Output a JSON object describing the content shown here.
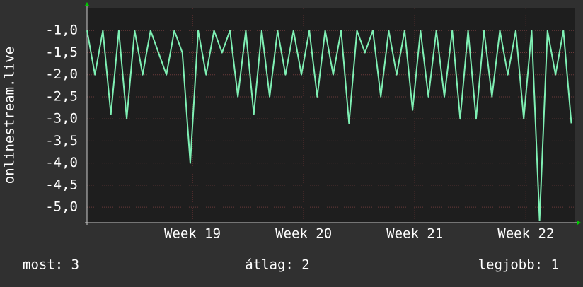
{
  "chart_data": {
    "type": "line",
    "y_label": "onlinestream.live",
    "x": [
      0,
      0.5,
      1,
      1.5,
      2,
      2.5,
      3,
      3.5,
      4,
      4.5,
      5,
      5.5,
      6,
      6.5,
      7,
      7.5,
      8,
      8.5,
      9,
      9.5,
      10,
      10.5,
      11,
      11.5,
      12,
      12.5,
      13,
      13.5,
      14,
      14.5,
      15,
      15.5,
      16,
      16.5,
      17,
      17.5,
      18,
      18.5,
      19,
      19.5,
      20,
      20.5,
      21,
      21.5,
      22,
      22.5,
      23,
      23.5,
      24,
      24.5,
      25,
      25.5,
      26,
      26.5,
      27,
      27.5,
      28,
      28.5,
      29,
      29.5,
      30,
      30.5
    ],
    "series": [
      {
        "name": "onlinestream.live",
        "color": "#7ff0b4",
        "values": [
          -1.0,
          -2.0,
          -1.0,
          -2.9,
          -1.0,
          -3.0,
          -1.0,
          -2.0,
          -1.0,
          -1.5,
          -2.0,
          -1.0,
          -1.5,
          -4.0,
          -1.0,
          -2.0,
          -1.0,
          -1.5,
          -1.0,
          -2.5,
          -1.0,
          -2.9,
          -1.0,
          -2.5,
          -1.0,
          -2.0,
          -1.0,
          -2.0,
          -1.0,
          -2.5,
          -1.0,
          -2.0,
          -1.0,
          -3.1,
          -1.0,
          -1.5,
          -1.0,
          -2.5,
          -1.0,
          -2.0,
          -1.0,
          -2.8,
          -1.0,
          -2.5,
          -1.0,
          -2.5,
          -1.0,
          -3.0,
          -1.0,
          -3.0,
          -1.0,
          -2.5,
          -1.0,
          -2.0,
          -1.0,
          -3.0,
          -1.0,
          -5.3,
          -1.0,
          -2.0,
          -1.0,
          -3.1
        ]
      }
    ],
    "xlim": [
      0,
      30.7
    ],
    "xticks": [
      {
        "value": 6.64,
        "label": "Week 19"
      },
      {
        "value": 13.64,
        "label": "Week 20"
      },
      {
        "value": 20.64,
        "label": "Week 21"
      },
      {
        "value": 27.64,
        "label": "Week 22"
      }
    ],
    "ylim": [
      -5.35,
      -0.5
    ],
    "yticks": [
      {
        "value": -1.0,
        "label": "-1,0"
      },
      {
        "value": -1.5,
        "label": "-1,5"
      },
      {
        "value": -2.0,
        "label": "-2,0"
      },
      {
        "value": -2.5,
        "label": "-2,5"
      },
      {
        "value": -3.0,
        "label": "-3,0"
      },
      {
        "value": -3.5,
        "label": "-3,5"
      },
      {
        "value": -4.0,
        "label": "-4,0"
      },
      {
        "value": -4.5,
        "label": "-4,5"
      },
      {
        "value": -5.0,
        "label": "-5,0"
      }
    ],
    "grid": true,
    "legend": [
      "most: 3",
      "átlag: 2",
      "legjobb: 1"
    ]
  }
}
